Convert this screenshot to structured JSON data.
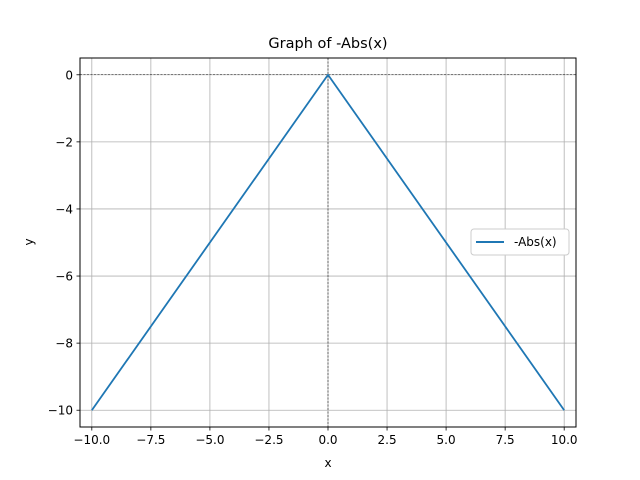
{
  "chart_data": {
    "type": "line",
    "title": "Graph of -Abs(x)",
    "xlabel": "x",
    "ylabel": "y",
    "xlim": [
      -10.5,
      10.5
    ],
    "ylim": [
      -10.5,
      0.5
    ],
    "xticks": [
      -10.0,
      -7.5,
      -5.0,
      -2.5,
      0.0,
      2.5,
      5.0,
      7.5,
      10.0
    ],
    "xtick_labels": [
      "−10.0",
      "−7.5",
      "−5.0",
      "−2.5",
      "0.0",
      "2.5",
      "5.0",
      "7.5",
      "10.0"
    ],
    "yticks": [
      0,
      -2,
      -4,
      -6,
      -8,
      -10
    ],
    "ytick_labels": [
      "0",
      "−2",
      "−4",
      "−6",
      "−8",
      "−10"
    ],
    "grid": true,
    "reference_lines": {
      "x": 0,
      "y": 0,
      "style": "dashed",
      "color": "#000000"
    },
    "legend": {
      "placement": "center-right"
    },
    "series": [
      {
        "name": "-Abs(x)",
        "color": "#1f77b4",
        "x": [
          -10,
          -0.1,
          0,
          0.1,
          10
        ],
        "y": [
          -10,
          -0.1,
          0,
          -0.1,
          -10
        ]
      }
    ]
  }
}
